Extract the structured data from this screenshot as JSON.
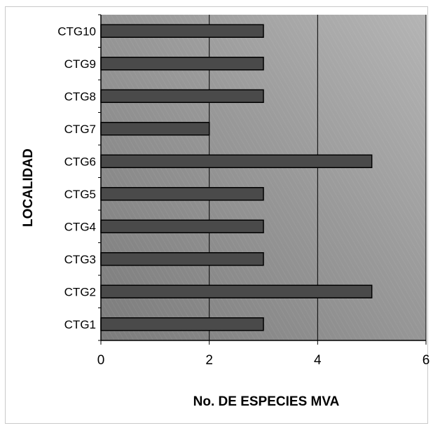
{
  "chart_data": {
    "type": "bar",
    "orientation": "horizontal",
    "title": "",
    "xlabel": "No. DE ESPECIES MVA",
    "ylabel": "LOCALIDAD",
    "categories": [
      "CTG1",
      "CTG2",
      "CTG3",
      "CTG4",
      "CTG5",
      "CTG6",
      "CTG7",
      "CTG8",
      "CTG9",
      "CTG10"
    ],
    "values": [
      3,
      5,
      3,
      3,
      3,
      5,
      2,
      3,
      3,
      3
    ],
    "xlim": [
      0,
      6
    ],
    "xticks": [
      "0",
      "2",
      "4",
      "6"
    ],
    "grid": "vertical",
    "legend": "none",
    "colors": {
      "bar_fill": "#4a4a4a",
      "bar_stroke": "#000000",
      "plot_dark": "#7c7c7c",
      "plot_light": "#b4b4b4"
    }
  }
}
